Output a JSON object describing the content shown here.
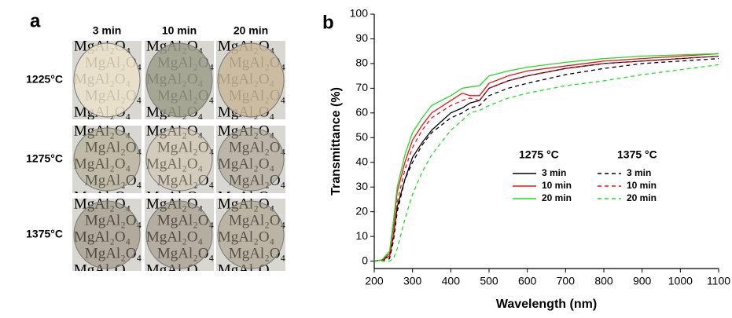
{
  "panel_a": {
    "label": "a",
    "columns": [
      "3 min",
      "10 min",
      "20 min"
    ],
    "rows": [
      "1225°C",
      "1275°C",
      "1375°C"
    ],
    "photo_text": "MgAl₂O₄"
  },
  "chart_data": {
    "type": "line",
    "panel_label": "b",
    "xlabel": "Wavelength (nm)",
    "ylabel": "Transmittance (%)",
    "x": [
      200,
      220,
      240,
      250,
      260,
      280,
      300,
      325,
      350,
      400,
      430,
      450,
      475,
      500,
      550,
      600,
      700,
      800,
      900,
      1000,
      1100
    ],
    "xlim": [
      200,
      1100
    ],
    "xticks": [
      200,
      300,
      400,
      500,
      600,
      700,
      800,
      900,
      1000,
      1100
    ],
    "ylim": [
      -3,
      100
    ],
    "yticks": [
      0,
      10,
      20,
      30,
      40,
      50,
      60,
      70,
      80,
      90,
      100
    ],
    "legend_headers": [
      "1275 °C",
      "1375 °C"
    ],
    "series": [
      {
        "name": "3 min",
        "color": "#000000",
        "dash": false,
        "values": [
          0,
          0.5,
          2,
          10,
          22,
          33,
          42,
          48,
          53,
          60,
          62,
          64,
          65,
          70,
          73,
          75,
          78,
          80,
          81,
          82,
          83
        ]
      },
      {
        "name": "10 min",
        "color": "#e8141c",
        "dash": false,
        "values": [
          0,
          0.5,
          3,
          14,
          28,
          40,
          49,
          55,
          60,
          65,
          68,
          67,
          67,
          72,
          75,
          77,
          79,
          81,
          82,
          83,
          84
        ]
      },
      {
        "name": "20 min",
        "color": "#22dd22",
        "dash": false,
        "values": [
          0,
          0.5,
          4,
          16,
          30,
          43,
          52,
          58,
          63,
          67,
          70,
          70.5,
          71,
          75,
          77,
          78.5,
          80.5,
          82,
          83,
          83.5,
          84
        ]
      },
      {
        "name": "3 min",
        "color": "#000000",
        "dash": true,
        "values": [
          0,
          0.3,
          1,
          8,
          20,
          33,
          40,
          47,
          52,
          58,
          60,
          62,
          63,
          67,
          70,
          72,
          75.5,
          78,
          80,
          81,
          82
        ]
      },
      {
        "name": "10 min",
        "color": "#e8141c",
        "dash": true,
        "values": [
          0,
          0.3,
          2,
          10,
          24,
          37,
          46,
          53,
          58,
          63,
          65,
          66,
          65,
          70,
          73,
          75,
          78,
          80,
          81,
          82,
          83
        ]
      },
      {
        "name": "20 min",
        "color": "#22dd22",
        "dash": true,
        "values": [
          0,
          0,
          0,
          1,
          5,
          17,
          27,
          36,
          43,
          53,
          57,
          60,
          61,
          63,
          66,
          68,
          71,
          73,
          75.5,
          77.5,
          79.5
        ]
      }
    ]
  }
}
